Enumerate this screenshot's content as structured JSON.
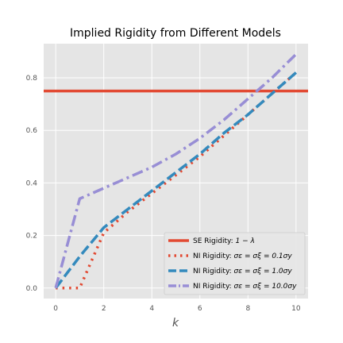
{
  "chart_data": {
    "type": "line",
    "title": "Implied Rigidity from Different Models",
    "xlabel": "k",
    "ylabel": "",
    "xlim": [
      -0.5,
      10.5
    ],
    "ylim": [
      -0.04,
      0.93
    ],
    "x_ticks": [
      0,
      2,
      4,
      6,
      8,
      10
    ],
    "y_ticks": [
      0.0,
      0.2,
      0.4,
      0.6,
      0.8
    ],
    "x_tick_labels": [
      "0",
      "2",
      "4",
      "6",
      "8",
      "10"
    ],
    "y_tick_labels": [
      "0.0",
      "0.2",
      "0.4",
      "0.6",
      "0.8"
    ],
    "grid": true,
    "legend_position": "lower-right",
    "series": [
      {
        "name": "SE Rigidity: 1 − λ",
        "kind": "hline",
        "style": "solid",
        "color": "#E24A33",
        "y": 0.75
      },
      {
        "name": "NI Rigidity: σ_ε = σ_ξ = 0.1σ_y",
        "kind": "line",
        "style": "dotted",
        "color": "#E24A33",
        "x": [
          0,
          1,
          2,
          3,
          4,
          5,
          6,
          7,
          8,
          9,
          10
        ],
        "y": [
          0.0,
          0.0,
          0.21,
          0.29,
          0.36,
          0.43,
          0.5,
          0.58,
          0.66,
          0.74,
          0.82
        ]
      },
      {
        "name": "NI Rigidity: σ_ε = σ_ξ = 1.0σ_y",
        "kind": "line",
        "style": "dashed",
        "color": "#348ABD",
        "x": [
          0,
          1,
          2,
          3,
          4,
          5,
          6,
          7,
          8,
          9,
          10
        ],
        "y": [
          0.0,
          0.12,
          0.23,
          0.3,
          0.37,
          0.44,
          0.51,
          0.59,
          0.66,
          0.74,
          0.82
        ]
      },
      {
        "name": "NI Rigidity: σ_ε = σ_ξ = 10.0σ_y",
        "kind": "line",
        "style": "dashdot",
        "color": "#988ED5",
        "x": [
          0,
          1,
          2,
          3,
          4,
          5,
          6,
          7,
          8,
          9,
          10
        ],
        "y": [
          0.0,
          0.34,
          0.38,
          0.42,
          0.46,
          0.51,
          0.57,
          0.64,
          0.72,
          0.8,
          0.89
        ]
      }
    ],
    "legend_labels": [
      {
        "prefix": "SE Rigidity: ",
        "math": "1 − λ"
      },
      {
        "prefix": "NI Rigidity: ",
        "math": "σε = σξ = 0.1σy"
      },
      {
        "prefix": "NI Rigidity: ",
        "math": "σε = σξ = 1.0σy"
      },
      {
        "prefix": "NI Rigidity: ",
        "math": "σε = σξ = 10.0σy"
      }
    ]
  }
}
